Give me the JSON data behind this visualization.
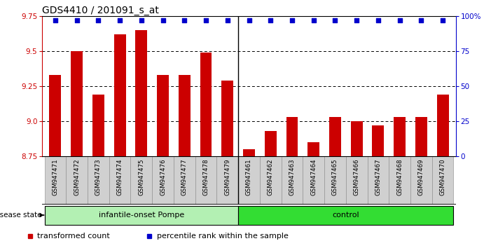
{
  "title": "GDS4410 / 201091_s_at",
  "samples": [
    "GSM947471",
    "GSM947472",
    "GSM947473",
    "GSM947474",
    "GSM947475",
    "GSM947476",
    "GSM947477",
    "GSM947478",
    "GSM947479",
    "GSM947461",
    "GSM947462",
    "GSM947463",
    "GSM947464",
    "GSM947465",
    "GSM947466",
    "GSM947467",
    "GSM947468",
    "GSM947469",
    "GSM947470"
  ],
  "bar_values": [
    9.33,
    9.5,
    9.19,
    9.62,
    9.65,
    9.33,
    9.33,
    9.49,
    9.29,
    8.8,
    8.93,
    9.03,
    8.85,
    9.03,
    9.0,
    8.97,
    9.03,
    9.03,
    9.19
  ],
  "dot_values_pct": [
    97,
    97,
    97,
    97,
    97,
    97,
    97,
    97,
    97,
    97,
    97,
    97,
    97,
    97,
    97,
    97,
    97,
    97,
    97
  ],
  "pompe_indices": [
    0,
    8
  ],
  "control_indices": [
    9,
    18
  ],
  "pompe_label": "infantile-onset Pompe",
  "control_label": "control",
  "pompe_color": "#b3f0b3",
  "control_color": "#33dd33",
  "bar_color": "#CC0000",
  "dot_color": "#0000CC",
  "ymin": 8.75,
  "ymax": 9.75,
  "yticks_left": [
    8.75,
    9.0,
    9.25,
    9.5,
    9.75
  ],
  "yticks_right": [
    0,
    25,
    50,
    75,
    100
  ],
  "yticklabels_right": [
    "0",
    "25",
    "50",
    "75",
    "100%"
  ],
  "bar_width": 0.55,
  "title_fontsize": 10,
  "tick_fontsize": 7.5,
  "separator_after_idx": 8,
  "legend_colors": [
    "#CC0000",
    "#0000CC"
  ],
  "legend_labels": [
    "transformed count",
    "percentile rank within the sample"
  ],
  "xtick_bg": "#D0D0D0",
  "xtick_border": "#888888",
  "group_border": "black",
  "disease_state_label": "disease state"
}
